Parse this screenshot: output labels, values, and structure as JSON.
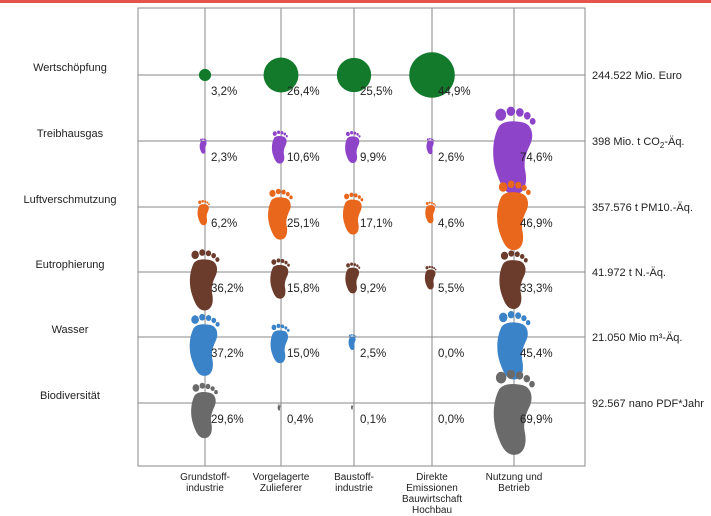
{
  "colors": {
    "accent_bar": "#e5534b",
    "grid": "#8a8a8a",
    "Wertschöpfung": "#137a2c",
    "Treibhausgas": "#8e44c9",
    "Luftverschmutzung": "#e8671c",
    "Eutrophierung": "#6b3b2c",
    "Wasser": "#3b83c9",
    "Biodiversität": "#6a6a6a"
  },
  "chart_data": {
    "type": "bubble-matrix",
    "categories": [
      "Grundstoff-\nindustrie",
      "Vorgelagerte\nZulieferer",
      "Baustoff-\nindustrie",
      "Direkte\nEmissionen\nBauwirtschaft\nHochbau",
      "Nutzung und\nBetrieb"
    ],
    "rows": [
      {
        "name": "Wertschöpfung",
        "marker": "circle",
        "total": "244.522 Mio. Euro",
        "values": [
          3.2,
          26.4,
          25.5,
          44.9,
          null
        ],
        "labels": [
          "3,2%",
          "26,4%",
          "25,5%",
          "44,9%",
          ""
        ]
      },
      {
        "name": "Treibhausgas",
        "marker": "footprint",
        "total": "398 Mio. t CO2-Äq.",
        "values": [
          2.3,
          10.6,
          9.9,
          2.6,
          74.6
        ],
        "labels": [
          "2,3%",
          "10,6%",
          "9,9%",
          "2,6%",
          "74,6%"
        ]
      },
      {
        "name": "Luftverschmutzung",
        "marker": "footprint",
        "total": "357.576 t PM10.-Äq.",
        "values": [
          6.2,
          25.1,
          17.1,
          4.6,
          46.9
        ],
        "labels": [
          "6,2%",
          "25,1%",
          "17,1%",
          "4,6%",
          "46,9%"
        ]
      },
      {
        "name": "Eutrophierung",
        "marker": "footprint",
        "total": "41.972 t N.-Äq.",
        "values": [
          36.2,
          15.8,
          9.2,
          5.5,
          33.3
        ],
        "labels": [
          "36,2%",
          "15,8%",
          "9,2%",
          "5,5%",
          "33,3%"
        ]
      },
      {
        "name": "Wasser",
        "marker": "footprint",
        "total": "21.050 Mio m³-Äq.",
        "values": [
          37.2,
          15.0,
          2.5,
          0.0,
          45.4
        ],
        "labels": [
          "37,2%",
          "15,0%",
          "2,5%",
          "0,0%",
          "45,4%"
        ]
      },
      {
        "name": "Biodiversität",
        "marker": "footprint",
        "total": "92.567 nano PDF*Jahr",
        "values": [
          29.6,
          0.4,
          0.1,
          0.0,
          69.9
        ],
        "labels": [
          "29,6%",
          "0,4%",
          "0,1%",
          "0,0%",
          "69,9%"
        ]
      }
    ]
  }
}
